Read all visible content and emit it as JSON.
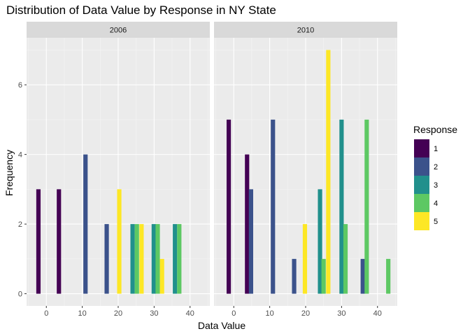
{
  "chart_data": {
    "type": "bar",
    "title": "Distribution of Data Value by Response in NY State",
    "xlabel": "Data Value",
    "ylabel": "Frequency",
    "xlim": [
      -5.5,
      45.5
    ],
    "ylim": [
      -0.35,
      7.35
    ],
    "x_ticks": [
      0,
      10,
      20,
      30,
      40
    ],
    "y_ticks": [
      0,
      2,
      4,
      6
    ],
    "bin_width": 1.2,
    "grid": true,
    "legend": {
      "title": "Response",
      "placement": "right",
      "entries": [
        {
          "label": "1",
          "color": "#440154"
        },
        {
          "label": "2",
          "color": "#3B528B"
        },
        {
          "label": "3",
          "color": "#21908C"
        },
        {
          "label": "4",
          "color": "#5DC863"
        },
        {
          "label": "5",
          "color": "#FDE725"
        }
      ]
    },
    "panels": [
      {
        "label": "2006",
        "bars": [
          {
            "response": "1",
            "x": -2.2,
            "count": 3
          },
          {
            "response": "1",
            "x": 3.5,
            "count": 3
          },
          {
            "response": "2",
            "x": 10.9,
            "count": 4
          },
          {
            "response": "2",
            "x": 16.8,
            "count": 2
          },
          {
            "response": "5",
            "x": 20.3,
            "count": 3
          },
          {
            "response": "3",
            "x": 24.0,
            "count": 2
          },
          {
            "response": "4",
            "x": 25.2,
            "count": 2
          },
          {
            "response": "5",
            "x": 26.5,
            "count": 2
          },
          {
            "response": "3",
            "x": 29.9,
            "count": 2
          },
          {
            "response": "4",
            "x": 31.0,
            "count": 2
          },
          {
            "response": "5",
            "x": 32.2,
            "count": 1
          },
          {
            "response": "3",
            "x": 35.8,
            "count": 2
          },
          {
            "response": "4",
            "x": 37.0,
            "count": 2
          }
        ]
      },
      {
        "label": "2010",
        "bars": [
          {
            "response": "1",
            "x": -1.4,
            "count": 5
          },
          {
            "response": "1",
            "x": 3.7,
            "count": 4
          },
          {
            "response": "2",
            "x": 4.8,
            "count": 3
          },
          {
            "response": "2",
            "x": 10.9,
            "count": 5
          },
          {
            "response": "2",
            "x": 16.8,
            "count": 1
          },
          {
            "response": "5",
            "x": 19.8,
            "count": 2
          },
          {
            "response": "3",
            "x": 24.0,
            "count": 3
          },
          {
            "response": "4",
            "x": 25.0,
            "count": 1
          },
          {
            "response": "5",
            "x": 26.3,
            "count": 7
          },
          {
            "response": "3",
            "x": 30.0,
            "count": 5
          },
          {
            "response": "4",
            "x": 31.1,
            "count": 2
          },
          {
            "response": "2",
            "x": 35.9,
            "count": 1
          },
          {
            "response": "4",
            "x": 37.0,
            "count": 5
          },
          {
            "response": "4",
            "x": 43.0,
            "count": 1
          }
        ]
      }
    ]
  }
}
